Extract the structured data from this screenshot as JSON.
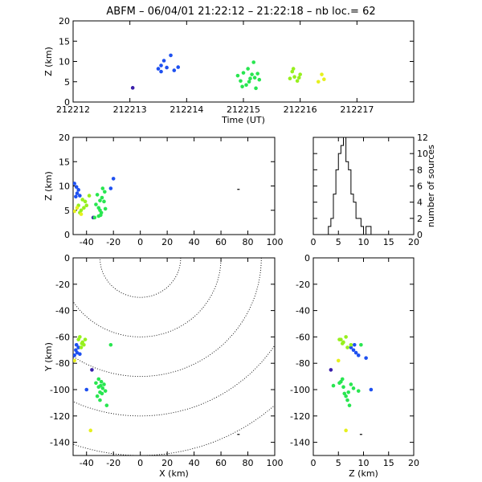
{
  "header": {
    "station": "ABFM",
    "date": "06/04/01",
    "time_range": "21:22:12 – 21:22:18",
    "nb_label": "nb loc.=",
    "nb_value": "62"
  },
  "colors": {
    "purple": "#3a1eaa",
    "blue": "#1e50f0",
    "green": "#28e650",
    "lime": "#96f01e",
    "yellow": "#e6f01e",
    "black": "#000000"
  },
  "chart_data": [
    {
      "id": "time-height",
      "type": "scatter",
      "xlabel": "Time (UT)",
      "ylabel": "Z (km)",
      "xlim": [
        212212,
        212218
      ],
      "ylim": [
        0,
        20
      ],
      "xticks": [
        212212,
        212213,
        212214,
        212215,
        212216,
        212217
      ],
      "yticks": [
        0,
        5,
        10,
        15,
        20
      ],
      "series": [
        {
          "color": "purple",
          "points": [
            [
              212213.05,
              3.5
            ]
          ]
        },
        {
          "color": "blue",
          "points": [
            [
              212213.5,
              8.2
            ],
            [
              212213.55,
              7.5
            ],
            [
              212213.6,
              10.2
            ],
            [
              212213.65,
              8.5
            ],
            [
              212213.72,
              11.5
            ],
            [
              212213.78,
              7.8
            ],
            [
              212213.85,
              8.6
            ],
            [
              212213.55,
              9.0
            ]
          ]
        },
        {
          "color": "green",
          "points": [
            [
              212214.9,
              6.5
            ],
            [
              212214.95,
              5.2
            ],
            [
              212215.0,
              7.2
            ],
            [
              212215.05,
              4.2
            ],
            [
              212215.08,
              8.2
            ],
            [
              212215.12,
              5.8
            ],
            [
              212215.18,
              9.8
            ],
            [
              212215.2,
              6.0
            ],
            [
              212215.25,
              7.0
            ],
            [
              212214.98,
              3.8
            ],
            [
              212215.1,
              5.0
            ],
            [
              212215.22,
              3.4
            ],
            [
              212215.15,
              6.8
            ],
            [
              212215.28,
              5.5
            ]
          ]
        },
        {
          "color": "lime",
          "points": [
            [
              212215.82,
              5.8
            ],
            [
              212215.86,
              7.5
            ],
            [
              212215.9,
              6.2
            ],
            [
              212215.95,
              5.2
            ],
            [
              212216.0,
              6.8
            ],
            [
              212215.88,
              8.2
            ],
            [
              212215.98,
              6.0
            ]
          ]
        },
        {
          "color": "yellow",
          "points": [
            [
              212216.32,
              5.0
            ],
            [
              212216.38,
              6.8
            ],
            [
              212216.42,
              5.6
            ]
          ]
        }
      ]
    },
    {
      "id": "x-height",
      "type": "scatter",
      "xlabel": "",
      "ylabel": "Z (km)",
      "xlim": [
        -50,
        100
      ],
      "ylim": [
        0,
        20
      ],
      "xticks": [
        -40,
        -20,
        0,
        20,
        40,
        60,
        80,
        100
      ],
      "yticks": [
        0,
        5,
        10,
        15,
        20
      ],
      "series": [
        {
          "color": "purple",
          "points": [
            [
              -35,
              3.5
            ]
          ]
        },
        {
          "color": "blue",
          "points": [
            [
              -49,
              10.5
            ],
            [
              -47,
              8.5
            ],
            [
              -46,
              9.2
            ],
            [
              -48,
              7.8
            ],
            [
              -45,
              8.0
            ],
            [
              -47.5,
              9.8
            ],
            [
              -20,
              11.5
            ],
            [
              -22,
              9.5
            ]
          ]
        },
        {
          "color": "green",
          "points": [
            [
              -33,
              6.2
            ],
            [
              -31,
              5.5
            ],
            [
              -30,
              7.0
            ],
            [
              -29,
              4.5
            ],
            [
              -32,
              8.2
            ],
            [
              -28,
              9.5
            ],
            [
              -30,
              5.0
            ],
            [
              -27,
              6.8
            ],
            [
              -26,
              5.3
            ],
            [
              -31,
              3.8
            ],
            [
              -28.5,
              7.6
            ],
            [
              -29.5,
              4.0
            ],
            [
              -34,
              3.5
            ],
            [
              -26.5,
              8.8
            ]
          ]
        },
        {
          "color": "lime",
          "points": [
            [
              -46,
              6.0
            ],
            [
              -43,
              7.2
            ],
            [
              -42,
              5.5
            ],
            [
              -44,
              5.0
            ],
            [
              -41,
              6.8
            ],
            [
              -45,
              4.5
            ],
            [
              -40,
              6.0
            ],
            [
              -38,
              8.0
            ]
          ]
        },
        {
          "color": "yellow",
          "points": [
            [
              -47,
              5.5
            ],
            [
              -49,
              4.8
            ],
            [
              -44,
              4.2
            ]
          ]
        },
        {
          "color": "black",
          "points": [
            [
              73,
              9.3
            ]
          ]
        }
      ]
    },
    {
      "id": "height-histogram",
      "type": "bar",
      "xlabel": "",
      "ylabel": "number of sources",
      "xlim": [
        0,
        20
      ],
      "ylim": [
        0,
        12
      ],
      "xticks": [
        0,
        5,
        10,
        15,
        20
      ],
      "yticks": [
        0,
        2,
        4,
        6,
        8,
        10,
        12
      ],
      "bin_width": 0.5,
      "bins_start": [
        2.5,
        3.0,
        3.5,
        4.0,
        4.5,
        5.0,
        5.5,
        6.0,
        6.5,
        7.0,
        7.5,
        8.0,
        8.5,
        9.0,
        9.5,
        10.0,
        10.5,
        11.0
      ],
      "values": [
        0,
        1,
        2,
        5,
        8,
        10,
        11,
        12,
        9,
        8,
        5,
        4,
        2,
        2,
        1,
        0,
        1,
        1
      ]
    },
    {
      "id": "x-y-plan",
      "type": "scatter",
      "xlabel": "X (km)",
      "ylabel": "Y (km)",
      "xlim": [
        -50,
        100
      ],
      "ylim": [
        -150,
        0
      ],
      "xticks": [
        -40,
        -20,
        0,
        20,
        40,
        60,
        80,
        100
      ],
      "yticks": [
        -140,
        -120,
        -100,
        -80,
        -60,
        -40,
        -20,
        0
      ],
      "range_rings_km": [
        30,
        60,
        90,
        120,
        150
      ],
      "ring_center": [
        0,
        0
      ],
      "series": [
        {
          "color": "purple",
          "points": [
            [
              -36,
              -85
            ]
          ]
        },
        {
          "color": "blue",
          "points": [
            [
              -48,
              -70
            ],
            [
              -47,
              -72
            ],
            [
              -46,
              -68
            ],
            [
              -49,
              -74
            ],
            [
              -45,
              -73
            ],
            [
              -47.5,
              -66
            ],
            [
              -40,
              -100
            ]
          ]
        },
        {
          "color": "green",
          "points": [
            [
              -33,
              -95
            ],
            [
              -31,
              -98
            ],
            [
              -30,
              -102
            ],
            [
              -29,
              -94
            ],
            [
              -32,
              -105
            ],
            [
              -28,
              -99
            ],
            [
              -30,
              -108
            ],
            [
              -27,
              -96
            ],
            [
              -26,
              -101
            ],
            [
              -31,
              -92
            ],
            [
              -28.5,
              -103
            ],
            [
              -29.5,
              -97
            ],
            [
              -25,
              -112
            ],
            [
              -22,
              -66
            ]
          ]
        },
        {
          "color": "lime",
          "points": [
            [
              -46,
              -62
            ],
            [
              -43,
              -64
            ],
            [
              -42,
              -66
            ],
            [
              -44,
              -68
            ],
            [
              -41,
              -62
            ],
            [
              -45,
              -60
            ],
            [
              -43.5,
              -65
            ]
          ]
        },
        {
          "color": "yellow",
          "points": [
            [
              -49,
              -78
            ],
            [
              -37,
              -131
            ]
          ]
        },
        {
          "color": "black",
          "points": [
            [
              73,
              -134
            ]
          ]
        }
      ]
    },
    {
      "id": "z-y-side",
      "type": "scatter",
      "xlabel": "Z (km)",
      "ylabel": "",
      "xlim": [
        0,
        20
      ],
      "ylim": [
        -150,
        0
      ],
      "xticks": [
        0,
        5,
        10,
        15,
        20
      ],
      "yticks": [
        -140,
        -120,
        -100,
        -80,
        -60,
        -40,
        -20,
        0
      ],
      "series": [
        {
          "color": "purple",
          "points": [
            [
              3.5,
              -85
            ]
          ]
        },
        {
          "color": "blue",
          "points": [
            [
              8.0,
              -70
            ],
            [
              8.5,
              -72
            ],
            [
              7.5,
              -68
            ],
            [
              9.0,
              -74
            ],
            [
              8.2,
              -66
            ],
            [
              10.5,
              -76
            ],
            [
              11.5,
              -100
            ]
          ]
        },
        {
          "color": "green",
          "points": [
            [
              5.2,
              -95
            ],
            [
              6.0,
              -98
            ],
            [
              7.0,
              -102
            ],
            [
              5.5,
              -94
            ],
            [
              6.5,
              -105
            ],
            [
              8.0,
              -99
            ],
            [
              6.8,
              -108
            ],
            [
              7.5,
              -96
            ],
            [
              9.0,
              -101
            ],
            [
              5.8,
              -92
            ],
            [
              6.2,
              -103
            ],
            [
              4.0,
              -97
            ],
            [
              7.2,
              -112
            ],
            [
              9.5,
              -66
            ]
          ]
        },
        {
          "color": "lime",
          "points": [
            [
              5.5,
              -62
            ],
            [
              6.0,
              -64
            ],
            [
              7.5,
              -66
            ],
            [
              6.8,
              -68
            ],
            [
              5.2,
              -62
            ],
            [
              6.5,
              -60
            ],
            [
              5.8,
              -65
            ]
          ]
        },
        {
          "color": "yellow",
          "points": [
            [
              5.0,
              -78
            ],
            [
              6.5,
              -131
            ]
          ]
        },
        {
          "color": "black",
          "points": [
            [
              9.5,
              -134
            ]
          ]
        }
      ]
    }
  ]
}
